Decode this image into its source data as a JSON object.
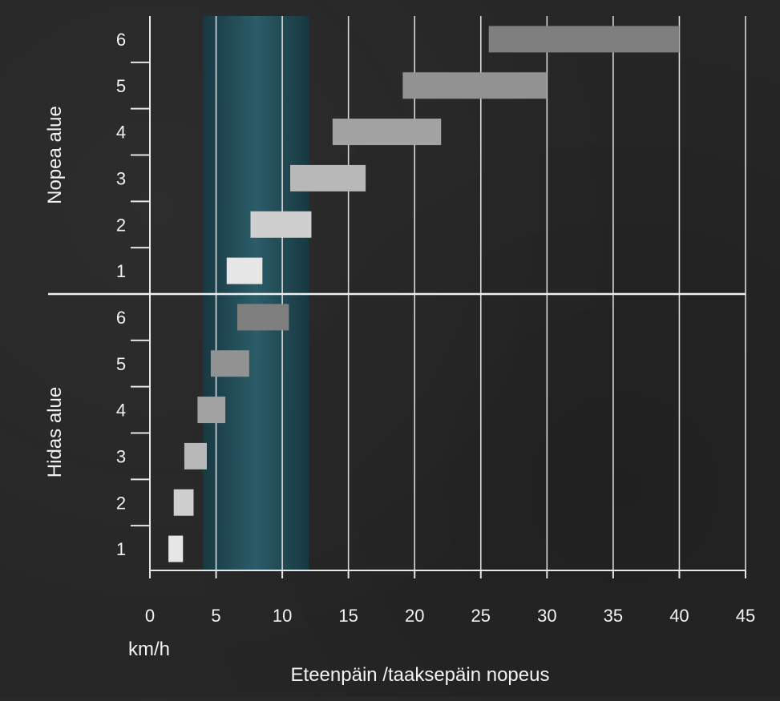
{
  "chart_data": {
    "type": "bar",
    "orientation": "horizontal-range",
    "xlabel": "Eteenpäin /taaksepäin nopeus",
    "xunit": "km/h",
    "xlim": [
      0,
      45
    ],
    "xticks": [
      0,
      5,
      10,
      15,
      20,
      25,
      30,
      35,
      40,
      45
    ],
    "grid": true,
    "highlight_band": {
      "x": [
        4,
        12
      ],
      "color": "#1f4a55"
    },
    "groups": [
      {
        "name": "Nopea alue",
        "categories": [
          "1",
          "2",
          "3",
          "4",
          "5",
          "6"
        ],
        "ranges": [
          [
            5.8,
            8.5
          ],
          [
            7.6,
            12.2
          ],
          [
            10.6,
            16.3
          ],
          [
            13.8,
            22.0
          ],
          [
            19.1,
            30.0
          ],
          [
            25.6,
            40.0
          ]
        ],
        "colors": [
          "#e6e6e6",
          "#cfcfcf",
          "#b8b8b8",
          "#a3a3a3",
          "#929292",
          "#7f7f7f"
        ]
      },
      {
        "name": "Hidas alue",
        "categories": [
          "1",
          "2",
          "3",
          "4",
          "5",
          "6"
        ],
        "ranges": [
          [
            1.4,
            2.5
          ],
          [
            1.8,
            3.3
          ],
          [
            2.6,
            4.3
          ],
          [
            3.6,
            5.7
          ],
          [
            4.6,
            7.5
          ],
          [
            6.6,
            10.5
          ]
        ],
        "colors": [
          "#e6e6e6",
          "#cfcfcf",
          "#b8b8b8",
          "#a3a3a3",
          "#929292",
          "#7f7f7f"
        ]
      }
    ]
  }
}
